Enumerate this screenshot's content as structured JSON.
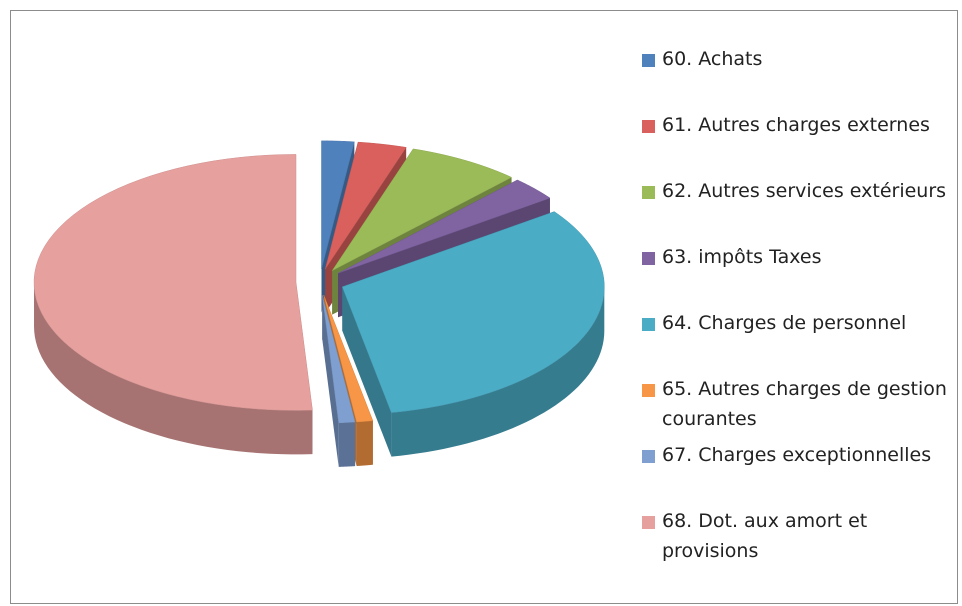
{
  "chart_data": {
    "type": "pie",
    "categories": [
      "60. Achats",
      "61. Autres charges externes",
      "62. Autres services extérieurs",
      "63. impôts Taxes",
      "64. Charges de personnel",
      "65. Autres charges de gestion courantes",
      "67. Charges exceptionnelles",
      "68. Dot. aux amort et provisions"
    ],
    "values": [
      2,
      3,
      7,
      3,
      32,
      1,
      1,
      51
    ],
    "colors": [
      "#4f81bd",
      "#d9605c",
      "#9bbb59",
      "#8064a2",
      "#4bacc6",
      "#f79646",
      "#7f9fd0",
      "#e6a09e"
    ],
    "legend": "right"
  }
}
